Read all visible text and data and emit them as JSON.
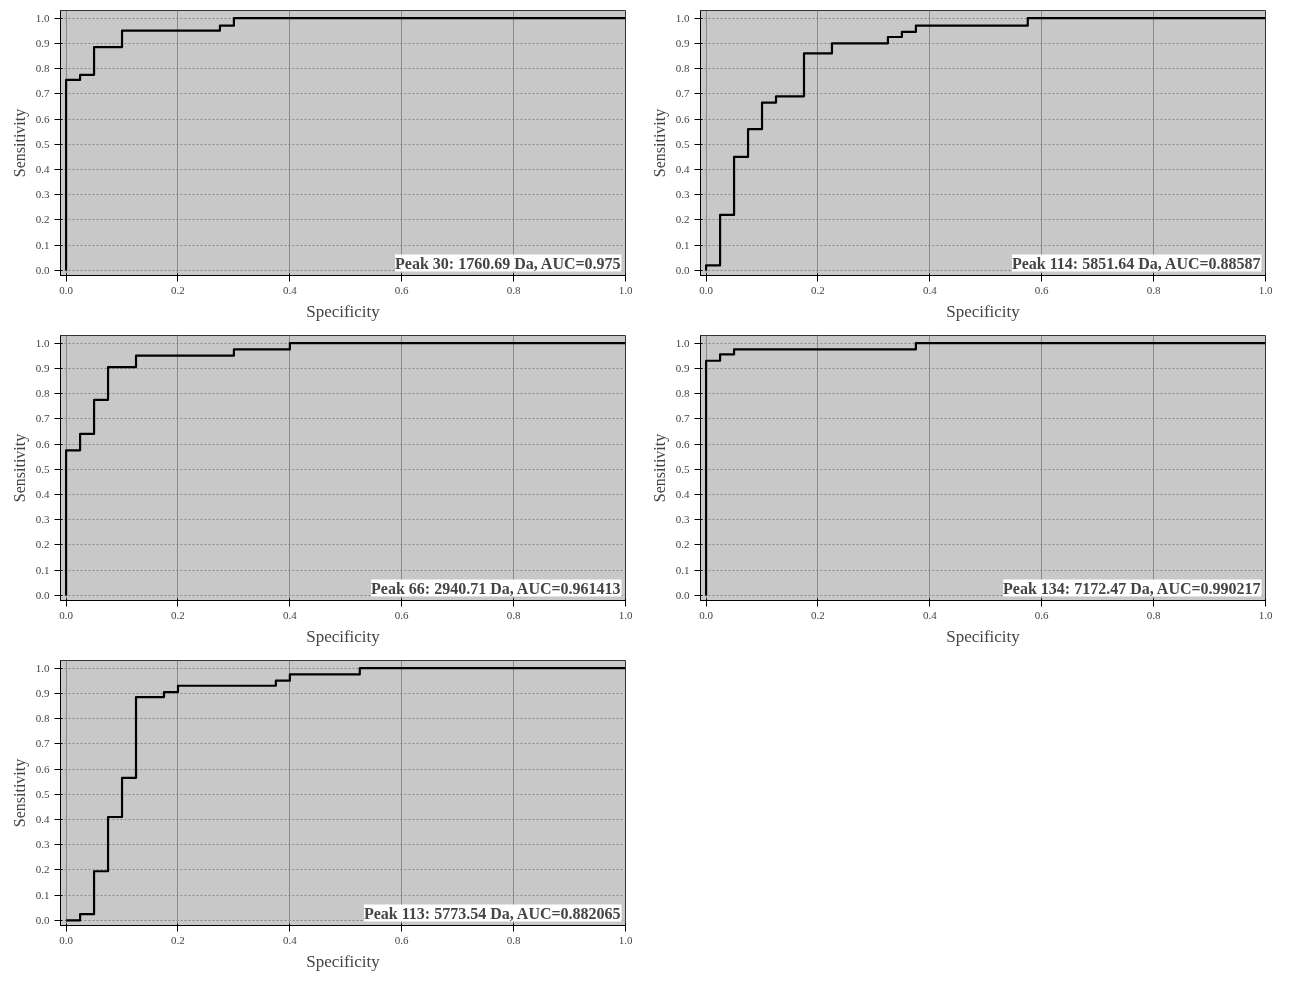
{
  "chart_data": [
    {
      "type": "step",
      "xlabel": "Specificity",
      "ylabel": "Sensitivity",
      "annotations": [
        "Peak 30: 1760.69 Da, AUC=0.975"
      ],
      "grid": true,
      "xlim": [
        -0.01,
        1.0
      ],
      "ylim": [
        -0.02,
        1.03
      ],
      "xticks": [
        {
          "value": 0,
          "label": "0.0"
        },
        {
          "value": 0.2,
          "label": "0.2"
        },
        {
          "value": 0.4,
          "label": "0.4"
        },
        {
          "value": 0.6,
          "label": "0.6"
        },
        {
          "value": 0.8,
          "label": "0.8"
        },
        {
          "value": 1,
          "label": "1.0"
        }
      ],
      "yticks": [
        {
          "value": 0,
          "label": "0.0"
        },
        {
          "value": 0.1,
          "label": "0.1"
        },
        {
          "value": 0.2,
          "label": "0.2"
        },
        {
          "value": 0.3,
          "label": "0.3"
        },
        {
          "value": 0.4,
          "label": "0.4"
        },
        {
          "value": 0.5,
          "label": "0.5"
        },
        {
          "value": 0.6,
          "label": "0.6"
        },
        {
          "value": 0.7,
          "label": "0.7"
        },
        {
          "value": 0.8,
          "label": "0.8"
        },
        {
          "value": 0.9,
          "label": "0.9"
        },
        {
          "value": 1,
          "label": "1.0"
        }
      ],
      "series": [
        {
          "color": "#000000",
          "x": [
            0,
            0,
            0.025,
            0.05,
            0.1,
            0.275,
            0.3,
            1.0
          ],
          "values": [
            0,
            0.755,
            0.775,
            0.885,
            0.95,
            0.97,
            1.0,
            1.0
          ]
        }
      ]
    },
    {
      "type": "step",
      "xlabel": "Specificity",
      "ylabel": "Sensitivity",
      "annotations": [
        "Peak 114: 5851.64 Da, AUC=0.88587"
      ],
      "grid": true,
      "xlim": [
        -0.01,
        1.0
      ],
      "ylim": [
        -0.02,
        1.03
      ],
      "xticks": [
        {
          "value": 0,
          "label": "0.0"
        },
        {
          "value": 0.2,
          "label": "0.2"
        },
        {
          "value": 0.4,
          "label": "0.4"
        },
        {
          "value": 0.6,
          "label": "0.6"
        },
        {
          "value": 0.8,
          "label": "0.8"
        },
        {
          "value": 1,
          "label": "1.0"
        }
      ],
      "yticks": [
        {
          "value": 0,
          "label": "0.0"
        },
        {
          "value": 0.1,
          "label": "0.1"
        },
        {
          "value": 0.2,
          "label": "0.2"
        },
        {
          "value": 0.3,
          "label": "0.3"
        },
        {
          "value": 0.4,
          "label": "0.4"
        },
        {
          "value": 0.5,
          "label": "0.5"
        },
        {
          "value": 0.6,
          "label": "0.6"
        },
        {
          "value": 0.7,
          "label": "0.7"
        },
        {
          "value": 0.8,
          "label": "0.8"
        },
        {
          "value": 0.9,
          "label": "0.9"
        },
        {
          "value": 1,
          "label": "1.0"
        }
      ],
      "series": [
        {
          "color": "#000000",
          "x": [
            0,
            0,
            0.025,
            0.05,
            0.075,
            0.1,
            0.125,
            0.175,
            0.225,
            0.325,
            0.35,
            0.375,
            0.575,
            1.0
          ],
          "values": [
            0,
            0.02,
            0.22,
            0.45,
            0.56,
            0.665,
            0.69,
            0.86,
            0.9,
            0.925,
            0.945,
            0.97,
            1.0,
            1.0
          ]
        }
      ]
    },
    {
      "type": "step",
      "xlabel": "Specificity",
      "ylabel": "Sensitivity",
      "annotations": [
        "Peak 66: 2940.71 Da, AUC=0.961413"
      ],
      "grid": true,
      "xlim": [
        -0.01,
        1.0
      ],
      "ylim": [
        -0.02,
        1.03
      ],
      "xticks": [
        {
          "value": 0,
          "label": "0.0"
        },
        {
          "value": 0.2,
          "label": "0.2"
        },
        {
          "value": 0.4,
          "label": "0.4"
        },
        {
          "value": 0.6,
          "label": "0.6"
        },
        {
          "value": 0.8,
          "label": "0.8"
        },
        {
          "value": 1,
          "label": "1.0"
        }
      ],
      "yticks": [
        {
          "value": 0,
          "label": "0.0"
        },
        {
          "value": 0.1,
          "label": "0.1"
        },
        {
          "value": 0.2,
          "label": "0.2"
        },
        {
          "value": 0.3,
          "label": "0.3"
        },
        {
          "value": 0.4,
          "label": "0.4"
        },
        {
          "value": 0.5,
          "label": "0.5"
        },
        {
          "value": 0.6,
          "label": "0.6"
        },
        {
          "value": 0.7,
          "label": "0.7"
        },
        {
          "value": 0.8,
          "label": "0.8"
        },
        {
          "value": 0.9,
          "label": "0.9"
        },
        {
          "value": 1,
          "label": "1.0"
        }
      ],
      "series": [
        {
          "color": "#000000",
          "x": [
            0,
            0,
            0.025,
            0.05,
            0.075,
            0.125,
            0.3,
            0.4,
            1.0
          ],
          "values": [
            0,
            0.575,
            0.64,
            0.775,
            0.905,
            0.95,
            0.975,
            1.0,
            1.0
          ]
        }
      ]
    },
    {
      "type": "step",
      "xlabel": "Specificity",
      "ylabel": "Sensitivity",
      "annotations": [
        "Peak 134: 7172.47 Da, AUC=0.990217"
      ],
      "grid": true,
      "xlim": [
        -0.01,
        1.0
      ],
      "ylim": [
        -0.02,
        1.03
      ],
      "xticks": [
        {
          "value": 0,
          "label": "0.0"
        },
        {
          "value": 0.2,
          "label": "0.2"
        },
        {
          "value": 0.4,
          "label": "0.4"
        },
        {
          "value": 0.6,
          "label": "0.6"
        },
        {
          "value": 0.8,
          "label": "0.8"
        },
        {
          "value": 1,
          "label": "1.0"
        }
      ],
      "yticks": [
        {
          "value": 0,
          "label": "0.0"
        },
        {
          "value": 0.1,
          "label": "0.1"
        },
        {
          "value": 0.2,
          "label": "0.2"
        },
        {
          "value": 0.3,
          "label": "0.3"
        },
        {
          "value": 0.4,
          "label": "0.4"
        },
        {
          "value": 0.5,
          "label": "0.5"
        },
        {
          "value": 0.6,
          "label": "0.6"
        },
        {
          "value": 0.7,
          "label": "0.7"
        },
        {
          "value": 0.8,
          "label": "0.8"
        },
        {
          "value": 0.9,
          "label": "0.9"
        },
        {
          "value": 1,
          "label": "1.0"
        }
      ],
      "series": [
        {
          "color": "#000000",
          "x": [
            0,
            0,
            0.025,
            0.05,
            0.375,
            1.0
          ],
          "values": [
            0,
            0.93,
            0.955,
            0.975,
            1.0,
            1.0
          ]
        }
      ]
    },
    {
      "type": "step",
      "xlabel": "Specificity",
      "ylabel": "Sensitivity",
      "annotations": [
        "Peak 113: 5773.54 Da, AUC=0.882065"
      ],
      "grid": true,
      "xlim": [
        -0.01,
        1.0
      ],
      "ylim": [
        -0.02,
        1.03
      ],
      "xticks": [
        {
          "value": 0,
          "label": "0.0"
        },
        {
          "value": 0.2,
          "label": "0.2"
        },
        {
          "value": 0.4,
          "label": "0.4"
        },
        {
          "value": 0.6,
          "label": "0.6"
        },
        {
          "value": 0.8,
          "label": "0.8"
        },
        {
          "value": 1,
          "label": "1.0"
        }
      ],
      "yticks": [
        {
          "value": 0,
          "label": "0.0"
        },
        {
          "value": 0.1,
          "label": "0.1"
        },
        {
          "value": 0.2,
          "label": "0.2"
        },
        {
          "value": 0.3,
          "label": "0.3"
        },
        {
          "value": 0.4,
          "label": "0.4"
        },
        {
          "value": 0.5,
          "label": "0.5"
        },
        {
          "value": 0.6,
          "label": "0.6"
        },
        {
          "value": 0.7,
          "label": "0.7"
        },
        {
          "value": 0.8,
          "label": "0.8"
        },
        {
          "value": 0.9,
          "label": "0.9"
        },
        {
          "value": 1,
          "label": "1.0"
        }
      ],
      "series": [
        {
          "color": "#000000",
          "x": [
            0,
            0.025,
            0.05,
            0.075,
            0.1,
            0.125,
            0.175,
            0.2,
            0.375,
            0.4,
            0.525,
            1.0
          ],
          "values": [
            0,
            0.025,
            0.195,
            0.41,
            0.565,
            0.885,
            0.905,
            0.93,
            0.95,
            0.975,
            1.0,
            1.0
          ]
        }
      ]
    }
  ]
}
